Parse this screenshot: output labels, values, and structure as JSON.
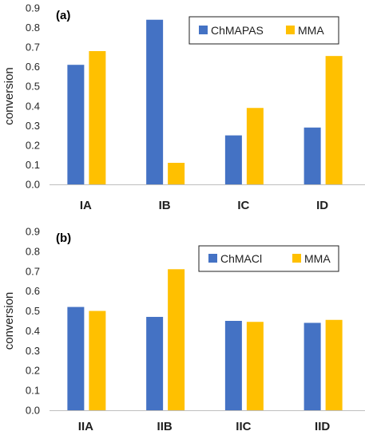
{
  "chart_data": [
    {
      "type": "bar",
      "panel_label": "(a)",
      "categories": [
        "IA",
        "IB",
        "IC",
        "ID"
      ],
      "ylabel": "conversion",
      "ylim": [
        0,
        0.9
      ],
      "yticks": [
        "0.0",
        "0.1",
        "0.2",
        "0.3",
        "0.4",
        "0.5",
        "0.6",
        "0.7",
        "0.8",
        "0.9"
      ],
      "grid": false,
      "legend_position": "top-right",
      "series": [
        {
          "name": "ChMAPAS",
          "color": "#4472C4",
          "values": [
            0.61,
            0.84,
            0.25,
            0.29
          ]
        },
        {
          "name": "MMA",
          "color": "#FFC000",
          "values": [
            0.68,
            0.11,
            0.39,
            0.655
          ]
        }
      ]
    },
    {
      "type": "bar",
      "panel_label": "(b)",
      "categories": [
        "IIA",
        "IIB",
        "IIC",
        "IID"
      ],
      "ylabel": "conversion",
      "ylim": [
        0,
        0.9
      ],
      "yticks": [
        "0.0",
        "0.1",
        "0.2",
        "0.3",
        "0.4",
        "0.5",
        "0.6",
        "0.7",
        "0.8",
        "0.9"
      ],
      "grid": false,
      "legend_position": "top-right",
      "series": [
        {
          "name": "ChMACl",
          "color": "#4472C4",
          "values": [
            0.52,
            0.47,
            0.45,
            0.44
          ]
        },
        {
          "name": "MMA",
          "color": "#FFC000",
          "values": [
            0.5,
            0.71,
            0.445,
            0.455
          ]
        }
      ]
    }
  ]
}
